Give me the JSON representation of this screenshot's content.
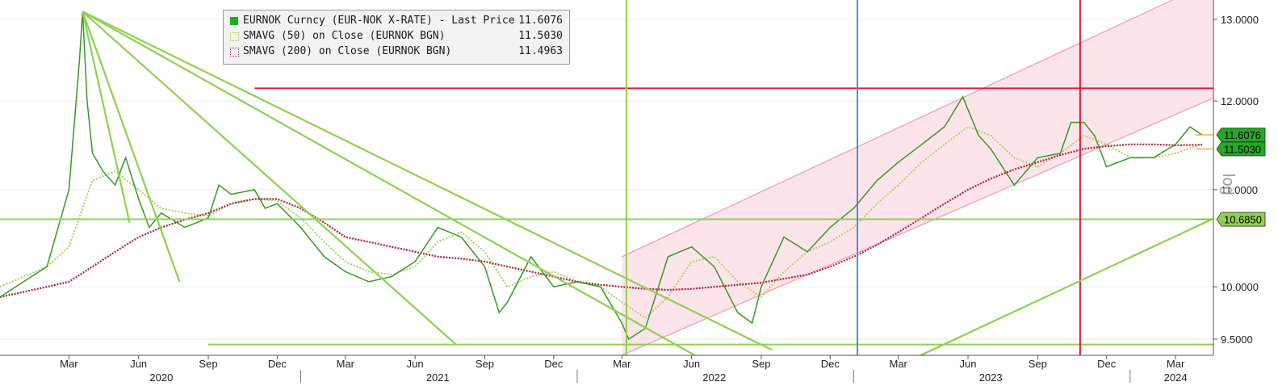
{
  "chart_data": {
    "type": "line",
    "scale": "log",
    "ylim": [
      9.35,
      13.25
    ],
    "yticks": [
      {
        "value": 9.5,
        "label": "9.5000"
      },
      {
        "value": 10.0,
        "label": "10.0000"
      },
      {
        "value": 11.0,
        "label": "11.0000"
      },
      {
        "value": 12.0,
        "label": "12.0000"
      },
      {
        "value": 13.0,
        "label": "13.0000"
      }
    ],
    "ylabel": "log",
    "x_month_ticks": [
      {
        "date": "2020-03",
        "label": "Mar"
      },
      {
        "date": "2020-06",
        "label": "Jun"
      },
      {
        "date": "2020-09",
        "label": "Sep"
      },
      {
        "date": "2020-12",
        "label": "Dec"
      },
      {
        "date": "2021-03",
        "label": "Mar"
      },
      {
        "date": "2021-06",
        "label": "Jun"
      },
      {
        "date": "2021-09",
        "label": "Sep"
      },
      {
        "date": "2021-12",
        "label": "Dec"
      },
      {
        "date": "2022-03",
        "label": "Mar"
      },
      {
        "date": "2022-06",
        "label": "Jun"
      },
      {
        "date": "2022-09",
        "label": "Sep"
      },
      {
        "date": "2022-12",
        "label": "Dec"
      },
      {
        "date": "2023-03",
        "label": "Mar"
      },
      {
        "date": "2023-06",
        "label": "Jun"
      },
      {
        "date": "2023-09",
        "label": "Sep"
      },
      {
        "date": "2023-12",
        "label": "Dec"
      },
      {
        "date": "2024-03",
        "label": "Mar"
      }
    ],
    "year_labels": [
      {
        "date": "2020-07",
        "label": "2020"
      },
      {
        "date": "2021-07",
        "label": "2021"
      },
      {
        "date": "2022-07",
        "label": "2022"
      },
      {
        "date": "2023-07",
        "label": "2023"
      },
      {
        "date": "2024-03",
        "label": "2024"
      }
    ],
    "year_dividers": [
      "2021-01",
      "2022-01",
      "2023-01",
      "2024-01"
    ],
    "series": [
      {
        "name": "EURNOK Curncy (EUR-NOK X-RATE) - Last Price",
        "color": "#22aa22",
        "points": [
          [
            "2019-12-01",
            9.9
          ],
          [
            "2020-01-01",
            10.05
          ],
          [
            "2020-02-01",
            10.2
          ],
          [
            "2020-03-01",
            11.0
          ],
          [
            "2020-03-15",
            12.5
          ],
          [
            "2020-03-19",
            13.1
          ],
          [
            "2020-03-25",
            12.0
          ],
          [
            "2020-04-01",
            11.4
          ],
          [
            "2020-04-15",
            11.2
          ],
          [
            "2020-05-01",
            11.05
          ],
          [
            "2020-05-15",
            11.35
          ],
          [
            "2020-06-01",
            10.9
          ],
          [
            "2020-06-15",
            10.6
          ],
          [
            "2020-07-01",
            10.75
          ],
          [
            "2020-08-01",
            10.6
          ],
          [
            "2020-09-01",
            10.7
          ],
          [
            "2020-09-15",
            11.05
          ],
          [
            "2020-10-01",
            10.95
          ],
          [
            "2020-11-01",
            11.0
          ],
          [
            "2020-11-15",
            10.8
          ],
          [
            "2020-12-01",
            10.85
          ],
          [
            "2021-01-01",
            10.6
          ],
          [
            "2021-02-01",
            10.3
          ],
          [
            "2021-03-01",
            10.15
          ],
          [
            "2021-04-01",
            10.05
          ],
          [
            "2021-05-01",
            10.1
          ],
          [
            "2021-06-01",
            10.25
          ],
          [
            "2021-07-01",
            10.6
          ],
          [
            "2021-08-01",
            10.5
          ],
          [
            "2021-09-01",
            10.2
          ],
          [
            "2021-09-20",
            9.75
          ],
          [
            "2021-10-01",
            9.85
          ],
          [
            "2021-11-01",
            10.3
          ],
          [
            "2021-12-01",
            10.0
          ],
          [
            "2022-01-01",
            10.05
          ],
          [
            "2022-02-01",
            10.0
          ],
          [
            "2022-03-01",
            9.65
          ],
          [
            "2022-03-10",
            9.5
          ],
          [
            "2022-04-01",
            9.6
          ],
          [
            "2022-05-01",
            10.3
          ],
          [
            "2022-06-01",
            10.4
          ],
          [
            "2022-07-01",
            10.2
          ],
          [
            "2022-08-01",
            9.75
          ],
          [
            "2022-08-20",
            9.65
          ],
          [
            "2022-09-01",
            10.0
          ],
          [
            "2022-10-01",
            10.5
          ],
          [
            "2022-11-01",
            10.35
          ],
          [
            "2022-12-01",
            10.6
          ],
          [
            "2023-01-01",
            10.8
          ],
          [
            "2023-02-01",
            11.1
          ],
          [
            "2023-03-01",
            11.3
          ],
          [
            "2023-04-01",
            11.5
          ],
          [
            "2023-05-01",
            11.7
          ],
          [
            "2023-05-25",
            12.05
          ],
          [
            "2023-06-15",
            11.6
          ],
          [
            "2023-07-01",
            11.45
          ],
          [
            "2023-08-01",
            11.05
          ],
          [
            "2023-09-01",
            11.35
          ],
          [
            "2023-10-01",
            11.4
          ],
          [
            "2023-10-15",
            11.75
          ],
          [
            "2023-11-01",
            11.75
          ],
          [
            "2023-11-15",
            11.6
          ],
          [
            "2023-12-01",
            11.25
          ],
          [
            "2024-01-01",
            11.35
          ],
          [
            "2024-02-01",
            11.35
          ],
          [
            "2024-03-01",
            11.5
          ],
          [
            "2024-03-20",
            11.7
          ],
          [
            "2024-04-05",
            11.6076
          ]
        ]
      },
      {
        "name": "SMAVG (50)  on Close (EURNOK BGN)",
        "color": "#a8d060",
        "points": [
          [
            "2019-12-01",
            10.0
          ],
          [
            "2020-02-01",
            10.2
          ],
          [
            "2020-03-01",
            10.4
          ],
          [
            "2020-04-01",
            11.1
          ],
          [
            "2020-05-01",
            11.2
          ],
          [
            "2020-06-01",
            11.0
          ],
          [
            "2020-07-01",
            10.8
          ],
          [
            "2020-08-01",
            10.75
          ],
          [
            "2020-09-01",
            10.72
          ],
          [
            "2020-10-01",
            10.85
          ],
          [
            "2020-11-01",
            10.9
          ],
          [
            "2020-12-01",
            10.88
          ],
          [
            "2021-01-01",
            10.7
          ],
          [
            "2021-02-01",
            10.45
          ],
          [
            "2021-03-01",
            10.25
          ],
          [
            "2021-04-01",
            10.15
          ],
          [
            "2021-05-01",
            10.12
          ],
          [
            "2021-06-01",
            10.2
          ],
          [
            "2021-07-01",
            10.45
          ],
          [
            "2021-08-01",
            10.55
          ],
          [
            "2021-09-01",
            10.35
          ],
          [
            "2021-10-01",
            10.0
          ],
          [
            "2021-11-01",
            10.1
          ],
          [
            "2021-12-01",
            10.15
          ],
          [
            "2022-01-01",
            10.05
          ],
          [
            "2022-02-01",
            10.0
          ],
          [
            "2022-03-01",
            9.85
          ],
          [
            "2022-04-01",
            9.7
          ],
          [
            "2022-05-01",
            9.9
          ],
          [
            "2022-06-01",
            10.25
          ],
          [
            "2022-07-01",
            10.3
          ],
          [
            "2022-08-01",
            10.05
          ],
          [
            "2022-09-01",
            9.9
          ],
          [
            "2022-10-01",
            10.15
          ],
          [
            "2022-11-01",
            10.35
          ],
          [
            "2022-12-01",
            10.45
          ],
          [
            "2023-01-01",
            10.6
          ],
          [
            "2023-02-01",
            10.85
          ],
          [
            "2023-03-01",
            11.05
          ],
          [
            "2023-04-01",
            11.3
          ],
          [
            "2023-05-01",
            11.5
          ],
          [
            "2023-06-01",
            11.7
          ],
          [
            "2023-07-01",
            11.6
          ],
          [
            "2023-08-01",
            11.35
          ],
          [
            "2023-09-01",
            11.25
          ],
          [
            "2023-10-01",
            11.4
          ],
          [
            "2023-11-01",
            11.6
          ],
          [
            "2023-12-01",
            11.5
          ],
          [
            "2024-01-01",
            11.35
          ],
          [
            "2024-02-01",
            11.35
          ],
          [
            "2024-03-01",
            11.4
          ],
          [
            "2024-04-05",
            11.503
          ]
        ]
      },
      {
        "name": "SMAVG (200)  on Close (EURNOK BGN)",
        "color": "#b0203a",
        "points": [
          [
            "2019-12-01",
            9.9
          ],
          [
            "2020-01-01",
            9.95
          ],
          [
            "2020-02-01",
            10.0
          ],
          [
            "2020-03-01",
            10.05
          ],
          [
            "2020-04-01",
            10.2
          ],
          [
            "2020-05-01",
            10.35
          ],
          [
            "2020-06-01",
            10.5
          ],
          [
            "2020-07-01",
            10.6
          ],
          [
            "2020-08-01",
            10.68
          ],
          [
            "2020-09-01",
            10.75
          ],
          [
            "2020-10-01",
            10.85
          ],
          [
            "2020-11-01",
            10.9
          ],
          [
            "2020-12-01",
            10.9
          ],
          [
            "2021-01-01",
            10.8
          ],
          [
            "2021-02-01",
            10.65
          ],
          [
            "2021-03-01",
            10.5
          ],
          [
            "2021-04-01",
            10.45
          ],
          [
            "2021-05-01",
            10.4
          ],
          [
            "2021-06-01",
            10.35
          ],
          [
            "2021-07-01",
            10.3
          ],
          [
            "2021-08-01",
            10.28
          ],
          [
            "2021-09-01",
            10.25
          ],
          [
            "2021-10-01",
            10.2
          ],
          [
            "2021-11-01",
            10.15
          ],
          [
            "2021-12-01",
            10.1
          ],
          [
            "2022-01-01",
            10.05
          ],
          [
            "2022-02-01",
            10.02
          ],
          [
            "2022-03-01",
            10.0
          ],
          [
            "2022-04-01",
            9.98
          ],
          [
            "2022-05-01",
            9.97
          ],
          [
            "2022-06-01",
            9.98
          ],
          [
            "2022-07-01",
            10.0
          ],
          [
            "2022-08-01",
            10.02
          ],
          [
            "2022-09-01",
            10.04
          ],
          [
            "2022-10-01",
            10.08
          ],
          [
            "2022-11-01",
            10.12
          ],
          [
            "2022-12-01",
            10.2
          ],
          [
            "2023-01-01",
            10.3
          ],
          [
            "2023-02-01",
            10.42
          ],
          [
            "2023-03-01",
            10.55
          ],
          [
            "2023-04-01",
            10.7
          ],
          [
            "2023-05-01",
            10.85
          ],
          [
            "2023-06-01",
            11.0
          ],
          [
            "2023-07-01",
            11.12
          ],
          [
            "2023-08-01",
            11.22
          ],
          [
            "2023-09-01",
            11.3
          ],
          [
            "2023-10-01",
            11.38
          ],
          [
            "2023-11-01",
            11.45
          ],
          [
            "2023-12-01",
            11.48
          ],
          [
            "2024-01-01",
            11.5
          ],
          [
            "2024-02-01",
            11.5
          ],
          [
            "2024-03-01",
            11.49
          ],
          [
            "2024-04-05",
            11.4963
          ]
        ]
      }
    ],
    "last_values": [
      {
        "label": "11.6076",
        "value": 11.6076,
        "color": "#22aa22"
      },
      {
        "label": "11.5030",
        "value": 11.503,
        "color": "#22aa22"
      },
      {
        "label": "10.6850",
        "value": 10.685,
        "color": "#8fd14f"
      }
    ],
    "horizontal_lines": [
      {
        "value": 12.15,
        "from": "2020-11-01",
        "color": "#e8173a"
      },
      {
        "value": 10.685,
        "from": "2019-12-01",
        "color": "#8fd14f"
      },
      {
        "value": 9.45,
        "from": "2020-09-01",
        "color": "#8fd14f"
      }
    ],
    "vertical_lines": [
      {
        "date": "2022-03-07",
        "color": "#8fd14f"
      },
      {
        "date": "2023-01-06",
        "color": "#4a90d9"
      },
      {
        "date": "2023-10-27",
        "color": "#e8173a"
      }
    ],
    "fan_lines": [
      {
        "from": [
          "2020-03-19",
          13.1
        ],
        "to": [
          "2020-05-20",
          10.65
        ]
      },
      {
        "from": [
          "2020-03-19",
          13.1
        ],
        "to": [
          "2020-07-25",
          10.05
        ]
      },
      {
        "from": [
          "2020-03-19",
          13.1
        ],
        "to": [
          "2021-07-25",
          9.45
        ]
      },
      {
        "from": [
          "2020-03-19",
          13.1
        ],
        "to": [
          "2022-07-01",
          9.25
        ]
      },
      {
        "from": [
          "2020-03-19",
          13.1
        ],
        "to": [
          "2022-09-15",
          9.4
        ]
      }
    ],
    "trend_lines": [
      {
        "from": [
          "2023-03-15",
          9.3
        ],
        "to": [
          "2024-06-01",
          10.85
        ]
      }
    ],
    "channel": {
      "fill": "#fde4ea",
      "line": "#f08aa0",
      "lower": {
        "from": [
          "2022-03-01",
          9.35
        ],
        "to": [
          "2024-06-01",
          12.2
        ]
      },
      "upper": {
        "from": [
          "2022-03-01",
          10.3
        ],
        "to": [
          "2024-06-01",
          13.7
        ]
      }
    },
    "legend": [
      {
        "name": "EURNOK Curncy (EUR-NOK X-RATE) - Last Price",
        "value": "11.6076",
        "icon": "filled-square"
      },
      {
        "name": "SMAVG (50)  on Close (EURNOK BGN)",
        "value": "11.5030",
        "icon": "dotted-square"
      },
      {
        "name": "SMAVG (200)  on Close (EURNOK BGN)",
        "value": "11.4963",
        "icon": "dotted-square"
      }
    ],
    "legend_title_prefix": "EURNOK Curncy (EUR-NOK X-RATE) - Last Price",
    "grid": true,
    "legend_placement": "top-left"
  }
}
